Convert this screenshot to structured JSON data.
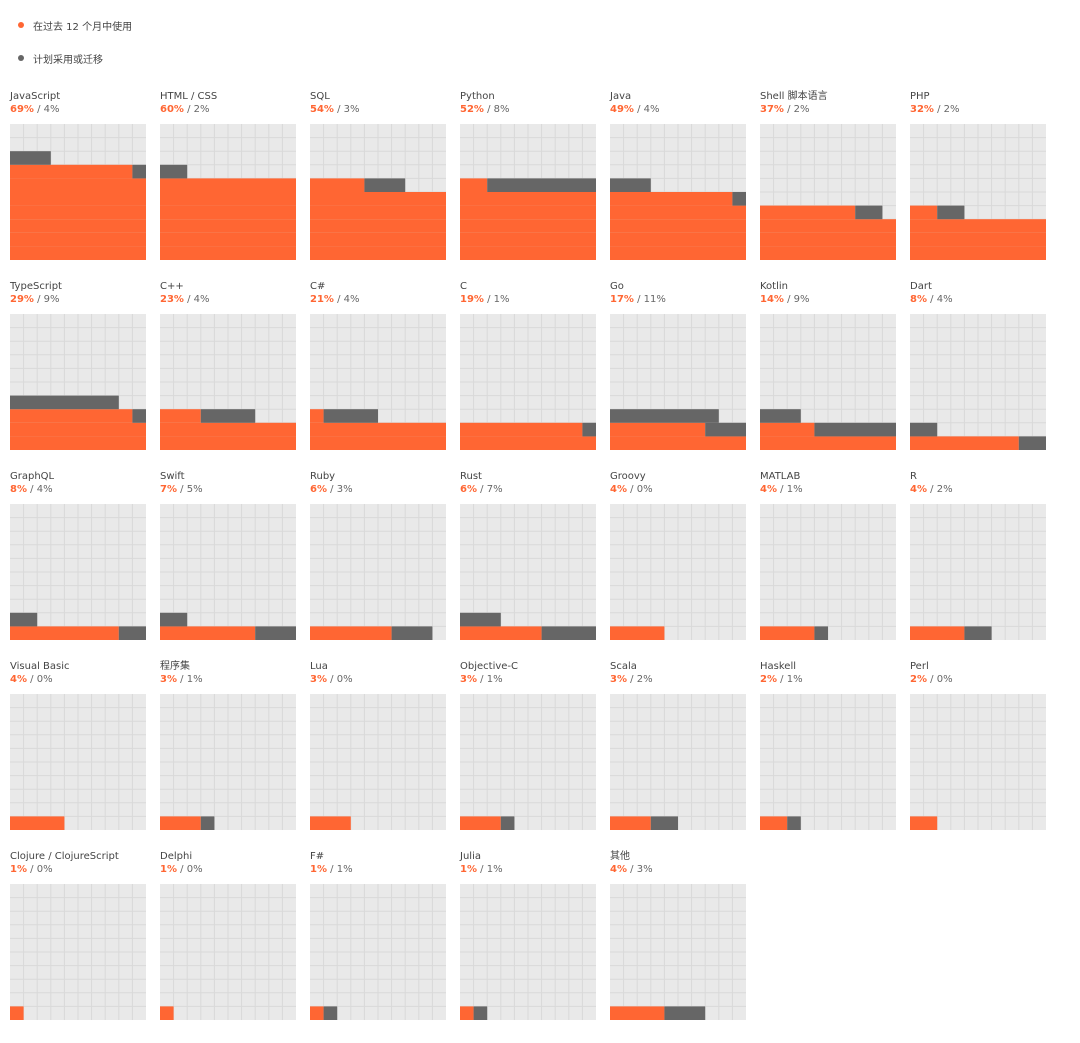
{
  "legend": {
    "used": {
      "label": "在过去 12 个月中使用",
      "color": "#ff6633"
    },
    "planned": {
      "label": "计划采用或迁移",
      "color": "#666666"
    }
  },
  "colors": {
    "used": "#ff6633",
    "planned": "#666666",
    "background": "#e9e9e9",
    "grid": "#d9d9d9"
  },
  "chart_data": {
    "type": "bar",
    "categories": [
      "JavaScript",
      "HTML / CSS",
      "SQL",
      "Python",
      "Java",
      "Shell 脚本语言",
      "PHP",
      "TypeScript",
      "C++",
      "C#",
      "C",
      "Go",
      "Kotlin",
      "Dart",
      "GraphQL",
      "Swift",
      "Ruby",
      "Rust",
      "Groovy",
      "MATLAB",
      "R",
      "Visual Basic",
      "程序集",
      "Lua",
      "Objective-C",
      "Scala",
      "Haskell",
      "Perl",
      "Clojure / ClojureScript",
      "Delphi",
      "F#",
      "Julia",
      "其他"
    ],
    "series": [
      {
        "name": "在过去 12 个月中使用",
        "values": [
          69,
          60,
          54,
          52,
          49,
          37,
          32,
          29,
          23,
          21,
          19,
          17,
          14,
          8,
          8,
          7,
          6,
          6,
          4,
          4,
          4,
          4,
          3,
          3,
          3,
          3,
          2,
          2,
          1,
          1,
          1,
          1,
          4
        ]
      },
      {
        "name": "计划采用或迁移",
        "values": [
          4,
          2,
          3,
          8,
          4,
          2,
          2,
          9,
          4,
          4,
          1,
          11,
          9,
          4,
          4,
          5,
          3,
          7,
          0,
          1,
          2,
          0,
          1,
          0,
          1,
          2,
          1,
          0,
          0,
          0,
          1,
          1,
          3
        ]
      }
    ],
    "labels_used": [
      "69%",
      "60%",
      "54%",
      "52%",
      "49%",
      "37%",
      "32%",
      "29%",
      "23%",
      "21%",
      "19%",
      "17%",
      "14%",
      "8%",
      "8%",
      "7%",
      "6%",
      "6%",
      "4%",
      "4%",
      "4%",
      "4%",
      "3%",
      "3%",
      "3%",
      "3%",
      "2%",
      "2%",
      "1%",
      "1%",
      "1%",
      "1%",
      "4%"
    ],
    "labels_planned": [
      "4%",
      "2%",
      "3%",
      "8%",
      "4%",
      "2%",
      "2%",
      "9%",
      "4%",
      "4%",
      "1%",
      "11%",
      "9%",
      "4%",
      "4%",
      "5%",
      "3%",
      "7%",
      "0%",
      "1%",
      "2%",
      "0%",
      "1%",
      "0%",
      "1%",
      "2%",
      "1%",
      "0%",
      "0%",
      "0%",
      "1%",
      "1%",
      "3%"
    ],
    "unit": "%",
    "ylim": [
      0,
      100
    ],
    "grid": true,
    "grid_cells": 10,
    "legend_position": "top-left"
  }
}
